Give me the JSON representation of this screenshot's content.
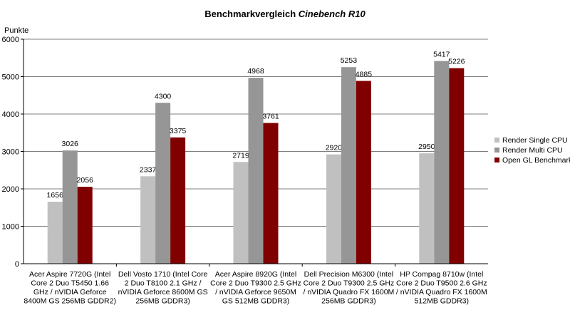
{
  "chart_data": {
    "type": "bar",
    "title": "Benchmarkvergleich",
    "title_italic": "Cinebench R10",
    "ylabel": "Punkte",
    "xlabel": "",
    "ylim": [
      0,
      6000
    ],
    "yticks": [
      0,
      1000,
      2000,
      3000,
      4000,
      5000,
      6000
    ],
    "grid": true,
    "legend_position": "right",
    "categories": [
      [
        "Acer Aspire 7720G (Intel",
        "Core 2 Duo T5450 1.66",
        "GHz / nVIDIA Geforce",
        "8400M GS 256MB GDDR2)"
      ],
      [
        "Dell Vosto 1710 (Intel Core",
        "2 Duo T8100 2.1 GHz /",
        "nVIDIA Geforce 8600M GS",
        "256MB GDDR3)"
      ],
      [
        "Acer Aspire 8920G (Intel",
        "Core 2 Duo T9300 2.5 GHz",
        "/ nVIDIA Geforce 9650M",
        "GS 512MB GDDR3)"
      ],
      [
        "Dell Precision M6300 (Intel",
        "Core 2 Duo T9300 2.5 GHz",
        "/ nVIDIA Quadro FX 1600M",
        "256MB GDDR3)"
      ],
      [
        "HP Compag 8710w (Intel",
        "Core 2 Duo T9500 2.6 GHz",
        "/ nVIDIA Quadro FX 1600M",
        "512MB GDDR3)"
      ]
    ],
    "series": [
      {
        "name": "Render Single CPU",
        "color": "#c0c0c0",
        "values": [
          1656,
          2337,
          2719,
          2920,
          2950
        ]
      },
      {
        "name": "Render Multi CPU",
        "color": "#969696",
        "values": [
          3026,
          4300,
          4968,
          5253,
          5417
        ]
      },
      {
        "name": "Open GL Benchmark",
        "color": "#800000",
        "values": [
          2056,
          3375,
          3761,
          4885,
          5226
        ]
      }
    ]
  }
}
